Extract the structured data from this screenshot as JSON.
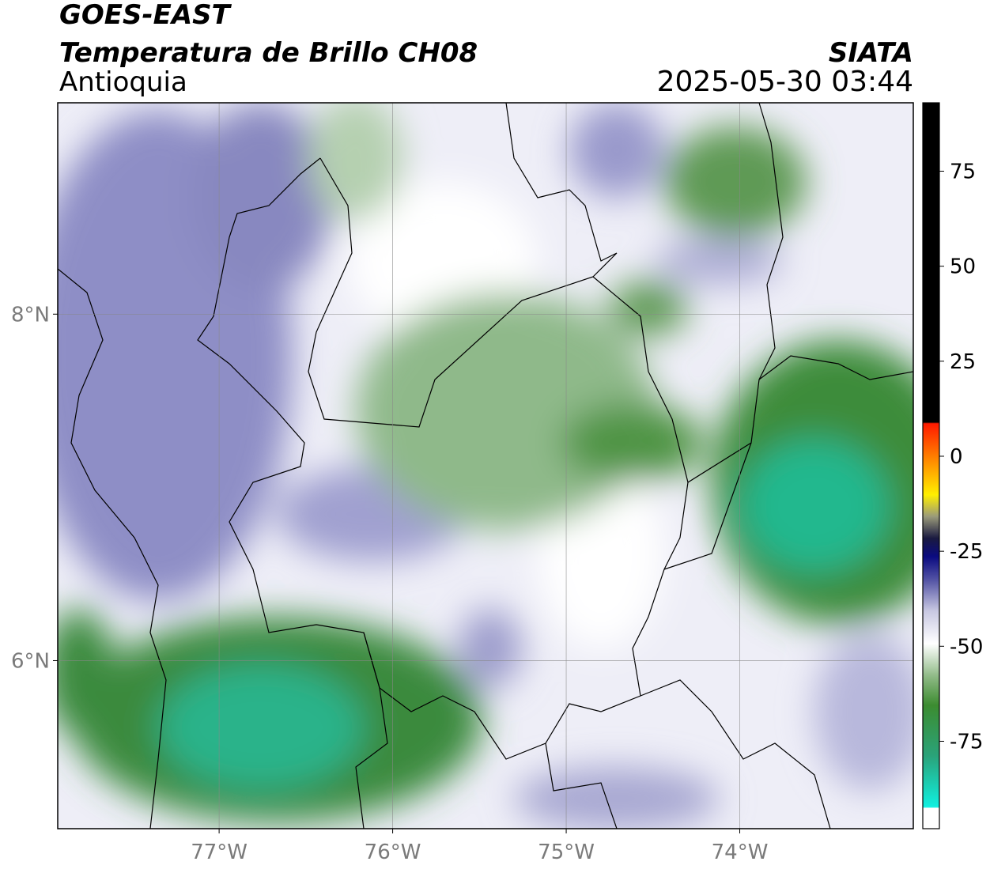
{
  "header": {
    "title": "GOES-EAST",
    "subtitle": "Temperatura de Brillo CH08",
    "region": "Antioquia",
    "source": "SIATA",
    "timestamp": "2025-05-30 03:44"
  },
  "map": {
    "xlim": [
      -77.93,
      -73.0
    ],
    "ylim": [
      5.03,
      9.22
    ],
    "xticks": [
      {
        "value": -77,
        "label": "77°W"
      },
      {
        "value": -76,
        "label": "76°W"
      },
      {
        "value": -75,
        "label": "75°W"
      },
      {
        "value": -74,
        "label": "74°W"
      }
    ],
    "yticks": [
      {
        "value": 8,
        "label": "8°N"
      },
      {
        "value": 6,
        "label": "6°N"
      }
    ]
  },
  "colorbar": {
    "lim": [
      -98,
      93
    ],
    "ticks": [
      75,
      50,
      25,
      0,
      -25,
      -50,
      -75
    ]
  }
}
